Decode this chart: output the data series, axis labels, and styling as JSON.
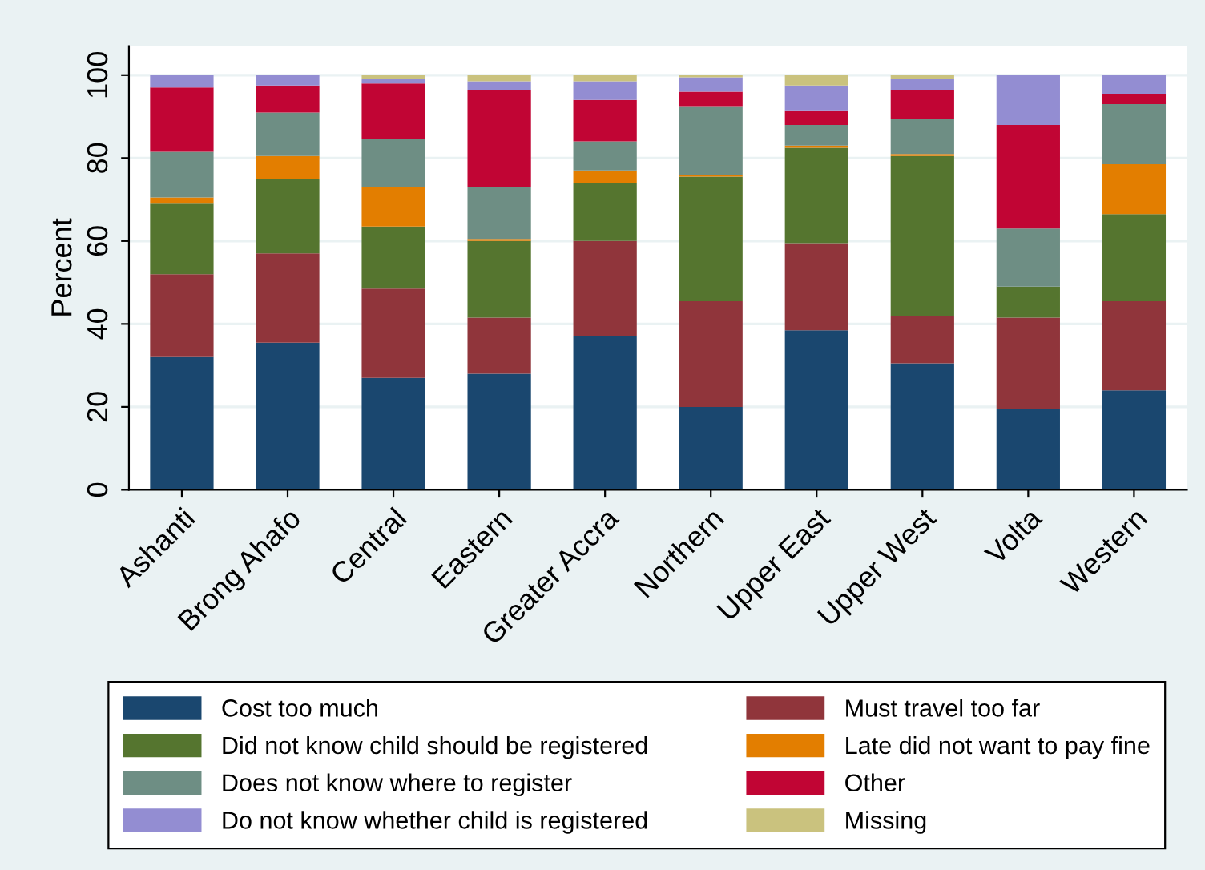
{
  "chart_data": {
    "type": "bar",
    "stacked": true,
    "ylabel": "Percent",
    "categories": [
      "Ashanti",
      "Brong Ahafo",
      "Central",
      "Eastern",
      "Greater Accra",
      "Northern",
      "Upper East",
      "Upper West",
      "Volta",
      "Western"
    ],
    "series": [
      {
        "name": "Cost too much",
        "color": "#1a476f",
        "values": [
          32,
          35.5,
          27,
          28,
          37,
          20,
          38.5,
          30.5,
          19.5,
          24
        ]
      },
      {
        "name": "Must travel too far",
        "color": "#90353b",
        "values": [
          20,
          21.5,
          21.5,
          13.5,
          23,
          25.5,
          21,
          11.5,
          22,
          21.5
        ]
      },
      {
        "name": "Did not know child should be registered",
        "color": "#55752f",
        "values": [
          17,
          18,
          15,
          18.5,
          14,
          30,
          23,
          38.5,
          7.5,
          21
        ]
      },
      {
        "name": "Late did not want to pay fine",
        "color": "#e37e00",
        "values": [
          1.5,
          5.5,
          9.5,
          0.5,
          3,
          0.5,
          0.5,
          0.5,
          0,
          12
        ]
      },
      {
        "name": "Does not know where to register",
        "color": "#6e8e84",
        "values": [
          11,
          10.5,
          11.5,
          12.5,
          7,
          16.5,
          5,
          8.5,
          14,
          14.5
        ]
      },
      {
        "name": "Other",
        "color": "#c10534",
        "values": [
          15.5,
          6.5,
          13.5,
          23.5,
          10,
          3.5,
          3.5,
          7,
          25,
          2.5
        ]
      },
      {
        "name": "Do not know whether child is registered",
        "color": "#938dd2",
        "values": [
          3,
          2.5,
          1,
          2,
          4.5,
          3.5,
          6,
          2.5,
          12,
          4.5
        ]
      },
      {
        "name": "Missing",
        "color": "#cac27e",
        "values": [
          0,
          0,
          1,
          1.5,
          1.5,
          0.5,
          2.5,
          1,
          0,
          0
        ]
      }
    ],
    "ylim": [
      0,
      107
    ],
    "yticks": [
      0,
      20,
      40,
      60,
      80,
      100
    ],
    "grid": "y",
    "legend": "bottom"
  }
}
